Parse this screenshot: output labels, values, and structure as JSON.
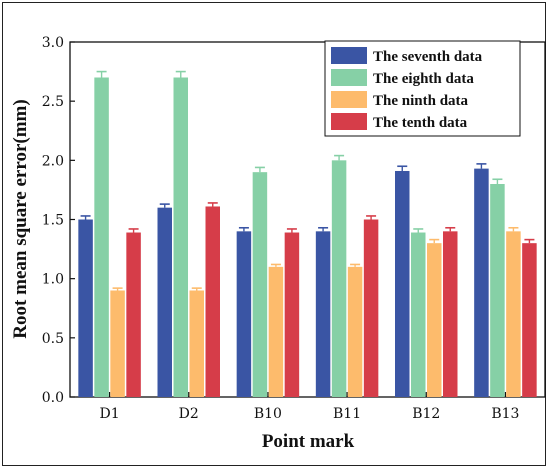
{
  "chart_data": {
    "type": "bar",
    "title": "",
    "xlabel": "Point mark",
    "ylabel": "Root mean square error(mm)",
    "ylim": [
      0,
      3.0
    ],
    "yticks": [
      "0.0",
      "0.5",
      "1.0",
      "1.5",
      "2.0",
      "2.5",
      "3.0"
    ],
    "grid": false,
    "legend_position": "top-right",
    "categories": [
      "D1",
      "D2",
      "B10",
      "B11",
      "B12",
      "B13"
    ],
    "series": [
      {
        "name": "The seventh data",
        "color": "#3a55a4",
        "values": [
          1.5,
          1.6,
          1.4,
          1.4,
          1.91,
          1.93
        ],
        "errors": [
          0.03,
          0.03,
          0.03,
          0.03,
          0.04,
          0.04
        ]
      },
      {
        "name": "The eighth data",
        "color": "#86d0a6",
        "values": [
          2.7,
          2.7,
          1.9,
          2.0,
          1.39,
          1.8
        ],
        "errors": [
          0.05,
          0.05,
          0.04,
          0.04,
          0.03,
          0.04
        ]
      },
      {
        "name": "The ninth data",
        "color": "#fdbb6c",
        "values": [
          0.9,
          0.9,
          1.1,
          1.1,
          1.3,
          1.4
        ],
        "errors": [
          0.02,
          0.02,
          0.02,
          0.02,
          0.03,
          0.03
        ]
      },
      {
        "name": "The tenth data",
        "color": "#d63d49",
        "values": [
          1.39,
          1.61,
          1.39,
          1.5,
          1.4,
          1.3
        ],
        "errors": [
          0.03,
          0.03,
          0.03,
          0.03,
          0.03,
          0.03
        ]
      }
    ]
  }
}
